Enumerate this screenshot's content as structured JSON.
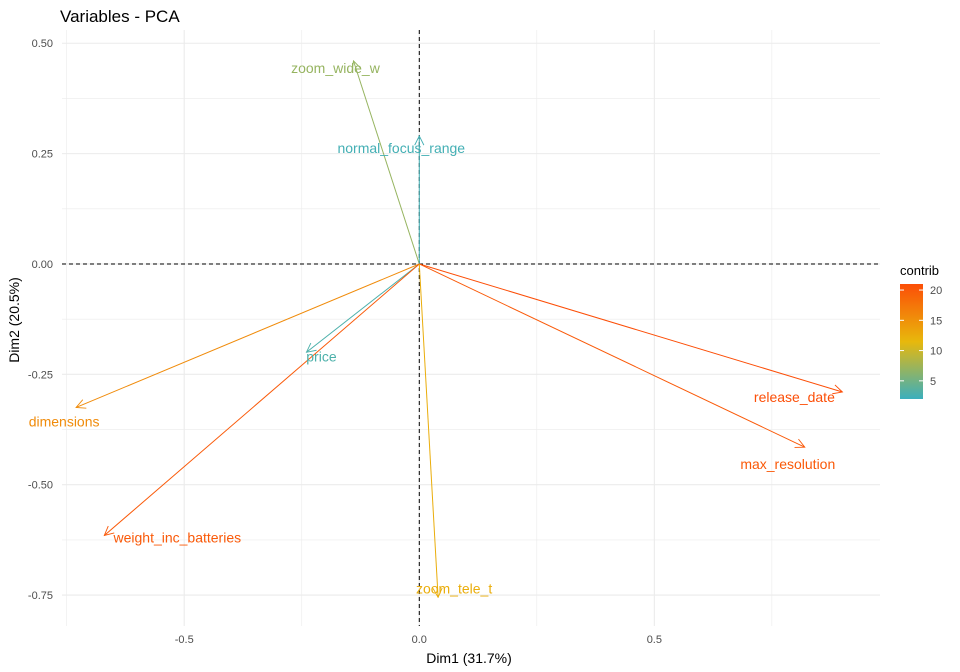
{
  "chart_data": {
    "type": "scatter",
    "subtype": "pca-variable-biplot",
    "title": "Variables - PCA",
    "xlabel": "Dim1 (31.7%)",
    "ylabel": "Dim2 (20.5%)",
    "xlim": [
      -0.76,
      0.98
    ],
    "ylim": [
      -0.82,
      0.53
    ],
    "xticks": [
      -0.5,
      0,
      0.5
    ],
    "xtick_labels": [
      "-0.5",
      "0.0",
      "0.5"
    ],
    "yticks": [
      -0.75,
      -0.5,
      -0.25,
      0,
      0.25,
      0.5
    ],
    "ytick_labels": [
      "-0.75",
      "-0.50",
      "-0.25",
      "0.00",
      "0.25",
      "0.50"
    ],
    "grid": true,
    "reference_lines": {
      "x": 0,
      "y": 0,
      "style": "dashed"
    },
    "variables": [
      {
        "label": "zoom_wide_w",
        "x": -0.14,
        "y": 0.46,
        "contrib": 7
      },
      {
        "label": "normal_focus_range",
        "x": 0.0,
        "y": 0.29,
        "contrib": 2.5
      },
      {
        "label": "price",
        "x": -0.24,
        "y": -0.2,
        "contrib": 3
      },
      {
        "label": "dimensions",
        "x": -0.73,
        "y": -0.325,
        "contrib": 15.5
      },
      {
        "label": "weight_inc_batteries",
        "x": -0.67,
        "y": -0.615,
        "contrib": 20
      },
      {
        "label": "release_date",
        "x": 0.9,
        "y": -0.29,
        "contrib": 21
      },
      {
        "label": "max_resolution",
        "x": 0.82,
        "y": -0.415,
        "contrib": 20
      },
      {
        "label": "zoom_tele_t",
        "x": 0.04,
        "y": -0.755,
        "contrib": 12.5
      }
    ],
    "legend": {
      "title": "contrib",
      "placement": "right",
      "range": [
        2,
        21
      ],
      "ticks": [
        5,
        10,
        15,
        20
      ],
      "tick_labels": [
        "5",
        "10",
        "15",
        "20"
      ]
    }
  },
  "colors": {
    "gradient_low": "#3aafbd",
    "gradient_mid": "#e8b80c",
    "gradient_high": "#fc4e07",
    "grid": "#ebebeb",
    "reference_line": "#000000"
  }
}
